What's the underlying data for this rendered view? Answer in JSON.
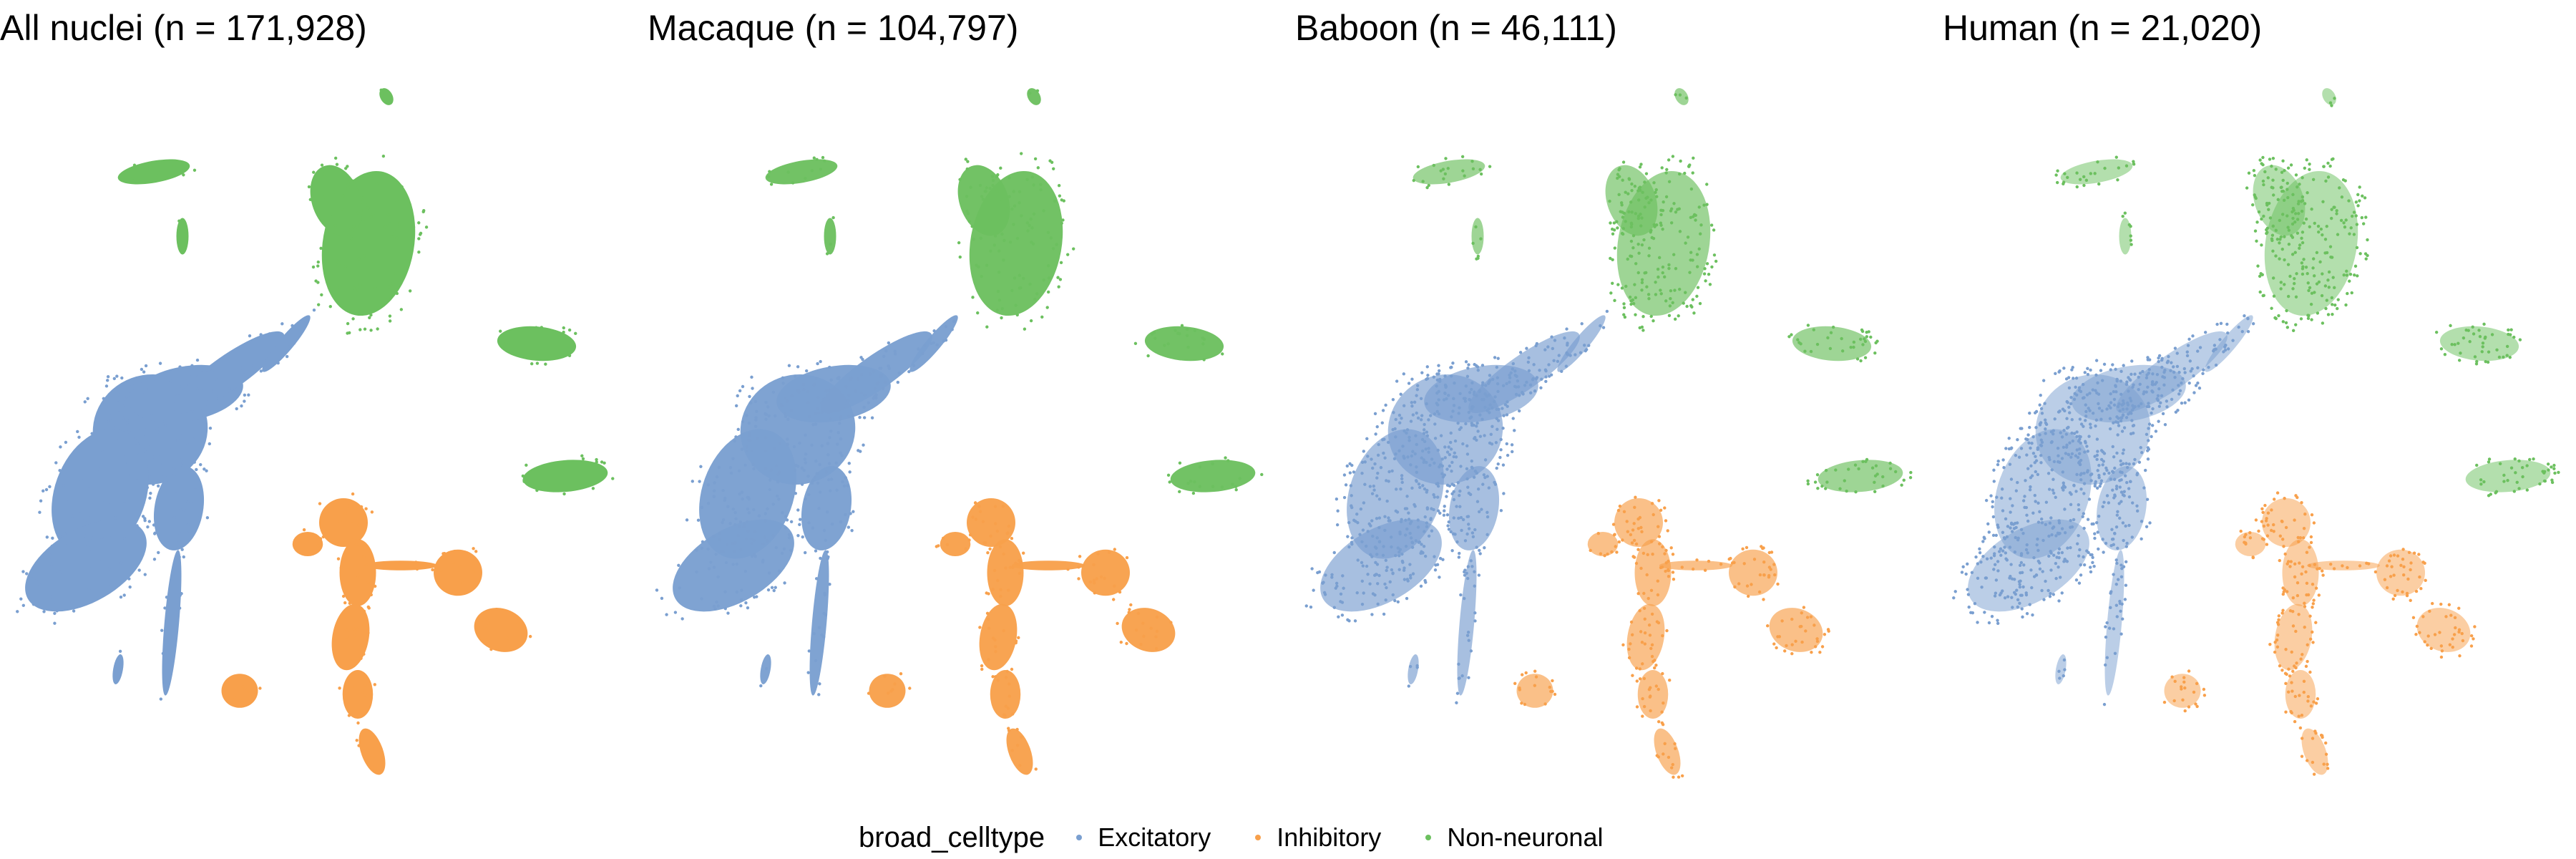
{
  "chart_data": [
    {
      "type": "scatter",
      "title": "All nuclei (n = 171,928)",
      "xlabel": "",
      "ylabel": "",
      "axes_visible": false,
      "grid": false,
      "series": [
        {
          "name": "Excitatory",
          "color": "#7A9FD0"
        },
        {
          "name": "Inhibitory",
          "color": "#F8A04B"
        },
        {
          "name": "Non-neuronal",
          "color": "#6CC05F"
        }
      ],
      "point_density": 1.0
    },
    {
      "type": "scatter",
      "title": "Macaque (n = 104,797)",
      "xlabel": "",
      "ylabel": "",
      "axes_visible": false,
      "grid": false,
      "series": [
        {
          "name": "Excitatory",
          "color": "#7A9FD0"
        },
        {
          "name": "Inhibitory",
          "color": "#F8A04B"
        },
        {
          "name": "Non-neuronal",
          "color": "#6CC05F"
        }
      ],
      "point_density": 0.95
    },
    {
      "type": "scatter",
      "title": "Baboon (n = 46,111)",
      "xlabel": "",
      "ylabel": "",
      "axes_visible": false,
      "grid": false,
      "series": [
        {
          "name": "Excitatory",
          "color": "#7A9FD0"
        },
        {
          "name": "Inhibitory",
          "color": "#F8A04B"
        },
        {
          "name": "Non-neuronal",
          "color": "#6CC05F"
        }
      ],
      "point_density": 0.55
    },
    {
      "type": "scatter",
      "title": "Human (n = 21,020)",
      "xlabel": "",
      "ylabel": "",
      "axes_visible": false,
      "grid": false,
      "series": [
        {
          "name": "Excitatory",
          "color": "#7A9FD0"
        },
        {
          "name": "Inhibitory",
          "color": "#F8A04B"
        },
        {
          "name": "Non-neuronal",
          "color": "#6CC05F"
        }
      ],
      "point_density": 0.35
    }
  ],
  "legend": {
    "title": "broad_celltype",
    "position": "bottom",
    "entries": [
      {
        "label": "Excitatory",
        "color": "#7A9FD0"
      },
      {
        "label": "Inhibitory",
        "color": "#F8A04B"
      },
      {
        "label": "Non-neuronal",
        "color": "#6CC05F"
      }
    ]
  }
}
